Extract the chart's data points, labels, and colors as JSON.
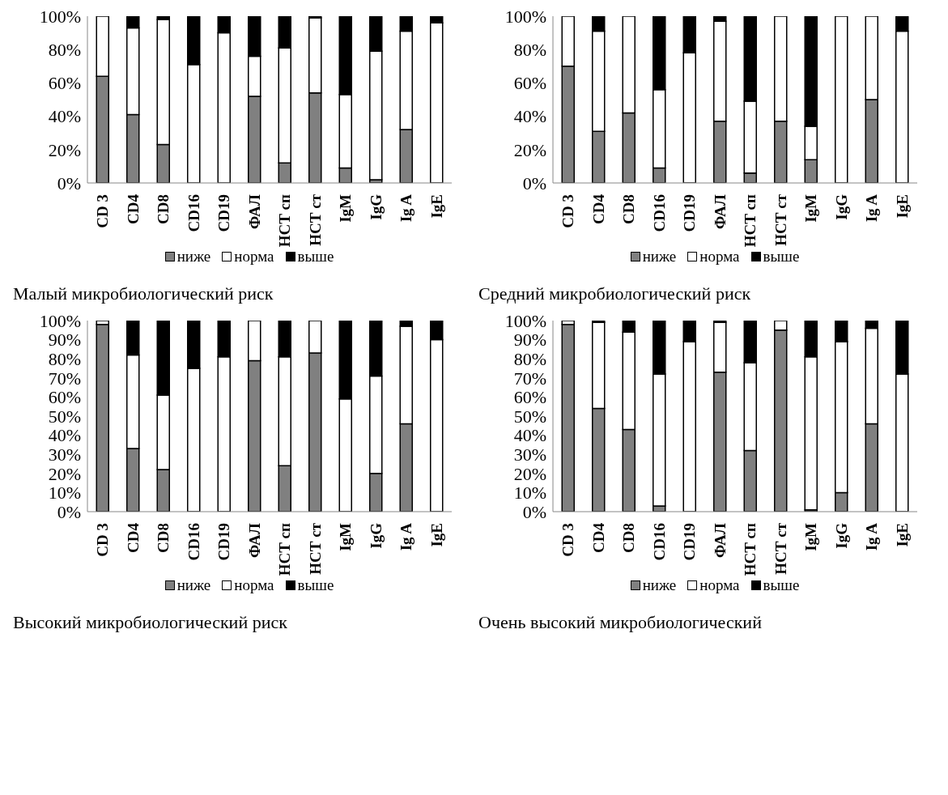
{
  "chart_data": [
    {
      "type": "bar",
      "stacked": true,
      "title": "Малый микробиологический риск",
      "categories": [
        "CD 3",
        "CD4",
        "CD8",
        "CD16",
        "CD19",
        "ФАЛ",
        "НСТ сп",
        "НСТ ст",
        "IgM",
        "IgG",
        "Ig A",
        "IgE"
      ],
      "series": [
        {
          "name": "ниже",
          "color": "#808080",
          "values": [
            64,
            41,
            23,
            0,
            0,
            52,
            12,
            54,
            9,
            2,
            32,
            0
          ]
        },
        {
          "name": "норма",
          "color": "#ffffff",
          "values": [
            36,
            52,
            75,
            71,
            90,
            24,
            69,
            45,
            44,
            77,
            59,
            96
          ]
        },
        {
          "name": "выше",
          "color": "#000000",
          "values": [
            0,
            7,
            2,
            29,
            10,
            24,
            19,
            1,
            47,
            21,
            9,
            4
          ]
        }
      ],
      "ylim": [
        0,
        100
      ],
      "yticks": [
        {
          "value": 0,
          "label": "0%"
        },
        {
          "value": 20,
          "label": "20%"
        },
        {
          "value": 40,
          "label": "40%"
        },
        {
          "value": 60,
          "label": "60%"
        },
        {
          "value": 80,
          "label": "80%"
        },
        {
          "value": 100,
          "label": "100%"
        }
      ],
      "legend": "bottom"
    },
    {
      "type": "bar",
      "stacked": true,
      "title": "Средний микробиологический риск",
      "categories": [
        "CD 3",
        "CD4",
        "CD8",
        "CD16",
        "CD19",
        "ФАЛ",
        "НСТ сп",
        "НСТ ст",
        "IgM",
        "IgG",
        "Ig A",
        "IgE"
      ],
      "series": [
        {
          "name": "ниже",
          "color": "#808080",
          "values": [
            70,
            31,
            42,
            9,
            0,
            37,
            6,
            37,
            14,
            0,
            50,
            0
          ]
        },
        {
          "name": "норма",
          "color": "#ffffff",
          "values": [
            30,
            60,
            58,
            47,
            78,
            60,
            43,
            63,
            20,
            100,
            50,
            91
          ]
        },
        {
          "name": "выше",
          "color": "#000000",
          "values": [
            0,
            9,
            0,
            44,
            22,
            3,
            51,
            0,
            66,
            0,
            0,
            9
          ]
        }
      ],
      "ylim": [
        0,
        100
      ],
      "yticks": [
        {
          "value": 0,
          "label": "0%"
        },
        {
          "value": 20,
          "label": "20%"
        },
        {
          "value": 40,
          "label": "40%"
        },
        {
          "value": 60,
          "label": "60%"
        },
        {
          "value": 80,
          "label": "80%"
        },
        {
          "value": 100,
          "label": "100%"
        }
      ],
      "legend": "bottom"
    },
    {
      "type": "bar",
      "stacked": true,
      "title": "Высокий микробиологический риск",
      "categories": [
        "CD 3",
        "CD4",
        "CD8",
        "CD16",
        "CD19",
        "ФАЛ",
        "НСТ сп",
        "НСТ ст",
        "IgM",
        "IgG",
        "Ig A",
        "IgE"
      ],
      "series": [
        {
          "name": "ниже",
          "color": "#808080",
          "values": [
            98,
            33,
            22,
            0,
            0,
            79,
            24,
            83,
            0,
            20,
            46,
            0
          ]
        },
        {
          "name": "норма",
          "color": "#ffffff",
          "values": [
            2,
            49,
            39,
            75,
            81,
            21,
            57,
            17,
            59,
            51,
            51,
            90
          ]
        },
        {
          "name": "выше",
          "color": "#000000",
          "values": [
            0,
            18,
            39,
            25,
            19,
            0,
            19,
            0,
            41,
            29,
            3,
            10
          ]
        }
      ],
      "ylim": [
        0,
        100
      ],
      "yticks": [
        {
          "value": 0,
          "label": "0%"
        },
        {
          "value": 10,
          "label": "10%"
        },
        {
          "value": 20,
          "label": "20%"
        },
        {
          "value": 30,
          "label": "30%"
        },
        {
          "value": 40,
          "label": "40%"
        },
        {
          "value": 50,
          "label": "50%"
        },
        {
          "value": 60,
          "label": "60%"
        },
        {
          "value": 70,
          "label": "70%"
        },
        {
          "value": 80,
          "label": "80%"
        },
        {
          "value": 90,
          "label": "90%"
        },
        {
          "value": 100,
          "label": "100%"
        }
      ],
      "legend": "bottom"
    },
    {
      "type": "bar",
      "stacked": true,
      "title": "Очень высокий микробиологический",
      "categories": [
        "CD 3",
        "CD4",
        "CD8",
        "CD16",
        "CD19",
        "ФАЛ",
        "НСТ сп",
        "НСТ ст",
        "IgM",
        "IgG",
        "Ig A",
        "IgE"
      ],
      "series": [
        {
          "name": "ниже",
          "color": "#808080",
          "values": [
            98,
            54,
            43,
            3,
            0,
            73,
            32,
            95,
            1,
            10,
            46,
            0
          ]
        },
        {
          "name": "норма",
          "color": "#ffffff",
          "values": [
            2,
            45,
            51,
            69,
            89,
            26,
            46,
            5,
            80,
            79,
            50,
            72
          ]
        },
        {
          "name": "выше",
          "color": "#000000",
          "values": [
            0,
            1,
            6,
            28,
            11,
            1,
            22,
            0,
            19,
            11,
            4,
            28
          ]
        }
      ],
      "ylim": [
        0,
        100
      ],
      "yticks": [
        {
          "value": 0,
          "label": "0%"
        },
        {
          "value": 10,
          "label": "10%"
        },
        {
          "value": 20,
          "label": "20%"
        },
        {
          "value": 30,
          "label": "30%"
        },
        {
          "value": 40,
          "label": "40%"
        },
        {
          "value": 50,
          "label": "50%"
        },
        {
          "value": 60,
          "label": "60%"
        },
        {
          "value": 70,
          "label": "70%"
        },
        {
          "value": 80,
          "label": "80%"
        },
        {
          "value": 90,
          "label": "90%"
        },
        {
          "value": 100,
          "label": "100%"
        }
      ],
      "legend": "bottom"
    }
  ]
}
